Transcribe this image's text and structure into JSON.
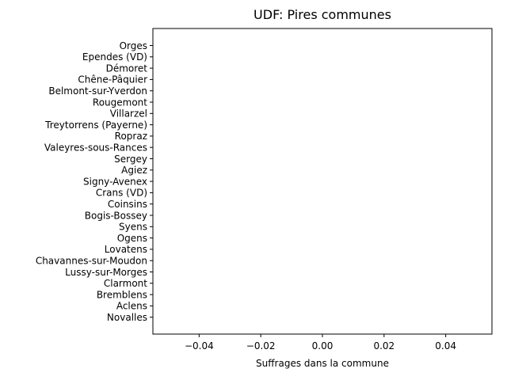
{
  "chart_data": {
    "type": "bar",
    "orientation": "horizontal",
    "title": "UDF: Pires communes",
    "xlabel": "Suffrages dans la commune",
    "ylabel": "",
    "categories": [
      "Orges",
      "Ependes (VD)",
      "Démoret",
      "Chêne-Pâquier",
      "Belmont-sur-Yverdon",
      "Rougemont",
      "Villarzel",
      "Treytorrens (Payerne)",
      "Ropraz",
      "Valeyres-sous-Rances",
      "Sergey",
      "Agiez",
      "Signy-Avenex",
      "Crans (VD)",
      "Coinsins",
      "Bogis-Bossey",
      "Syens",
      "Ogens",
      "Lovatens",
      "Chavannes-sur-Moudon",
      "Lussy-sur-Morges",
      "Clarmont",
      "Bremblens",
      "Aclens",
      "Novalles"
    ],
    "values": [
      0,
      0,
      0,
      0,
      0,
      0,
      0,
      0,
      0,
      0,
      0,
      0,
      0,
      0,
      0,
      0,
      0,
      0,
      0,
      0,
      0,
      0,
      0,
      0,
      0
    ],
    "xlim": [
      -0.055,
      0.055
    ],
    "xticks": [
      -0.04,
      -0.02,
      0.0,
      0.02,
      0.04
    ],
    "xtick_labels": [
      "−0.04",
      "−0.02",
      "0.00",
      "0.02",
      "0.04"
    ],
    "grid": false,
    "legend": "none",
    "colors": {
      "bar": "#1f77b4",
      "axis": "#000000",
      "background": "#ffffff"
    }
  }
}
